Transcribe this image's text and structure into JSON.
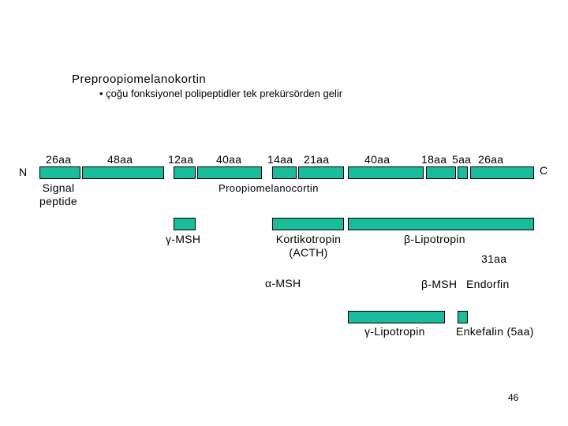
{
  "slide": {
    "title": "Preproopiomelanokortin",
    "subtitle": "• çoğu fonksiyonel polipeptidler tek prekürsörden gelir",
    "page_number": "46"
  },
  "main_chain": {
    "n_label": "N",
    "c_label": "C",
    "segment_lengths": [
      "26aa",
      "48aa",
      "12aa",
      "40aa",
      "14aa",
      "21aa",
      "40aa",
      "18aa",
      "5aa",
      "26aa"
    ],
    "signal_label_1": "Signal",
    "signal_label_2": "peptide",
    "name": "Proopiomelanocortin"
  },
  "fragments": {
    "gamma_msh": "γ-MSH",
    "acth_1": "Kortikotropin",
    "acth_2": "(ACTH)",
    "beta_lipotropin": "β-Lipotropin",
    "aa31": "31aa",
    "alpha_msh": "α-MSH",
    "beta_msh": "β-MSH",
    "endorfin": "Endorfin",
    "gamma_lipotropin": "γ-Lipotropin",
    "enkefalin": "Enkefalin (5aa)"
  },
  "colors": {
    "segment_fill": "#1abc9c",
    "segment_border": "#000000"
  }
}
